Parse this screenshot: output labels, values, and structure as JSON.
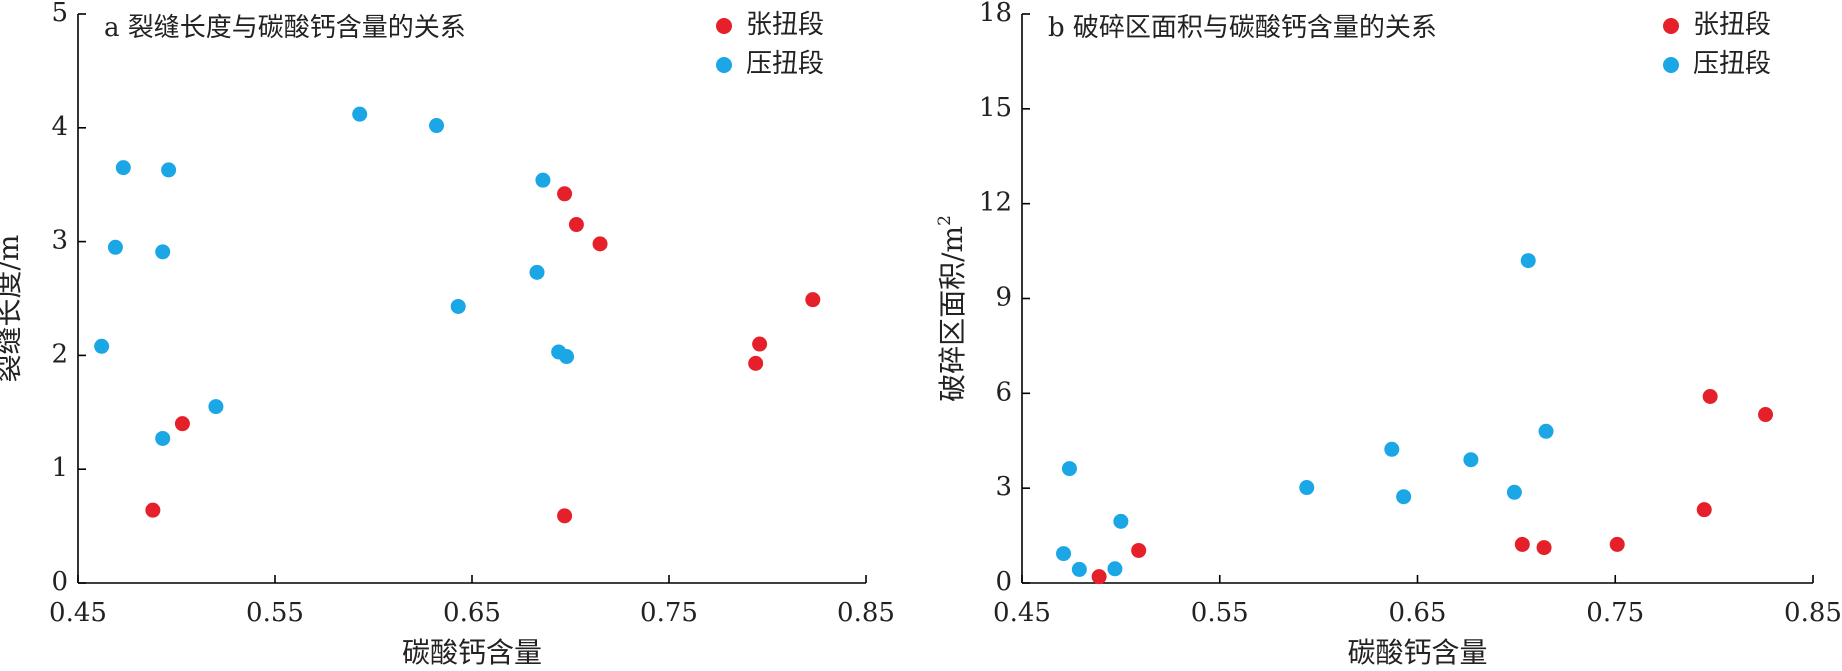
{
  "chart_data": [
    {
      "type": "scatter",
      "title": "a 裂缝长度与碳酸钙含量的关系",
      "xlabel": "碳酸钙含量",
      "ylabel": "裂缝长度/m",
      "xlim": [
        0.45,
        0.85
      ],
      "ylim": [
        0,
        5
      ],
      "x_ticks": [
        "0.45",
        "0.55",
        "0.65",
        "0.75",
        "0.85"
      ],
      "y_ticks": [
        "0",
        "1",
        "2",
        "3",
        "4",
        "5"
      ],
      "grid": false,
      "legend_position": "top-right",
      "series": [
        {
          "name": "张扭段",
          "color": "#e5202a",
          "points": [
            [
              0.697,
              3.42
            ],
            [
              0.703,
              3.15
            ],
            [
              0.715,
              2.98
            ],
            [
              0.823,
              2.49
            ],
            [
              0.796,
              2.1
            ],
            [
              0.794,
              1.93
            ],
            [
              0.503,
              1.4
            ],
            [
              0.488,
              0.64
            ],
            [
              0.697,
              0.59
            ]
          ]
        },
        {
          "name": "压扭段",
          "color": "#1ba6e6",
          "points": [
            [
              0.593,
              4.12
            ],
            [
              0.632,
              4.02
            ],
            [
              0.473,
              3.65
            ],
            [
              0.496,
              3.63
            ],
            [
              0.686,
              3.54
            ],
            [
              0.469,
              2.95
            ],
            [
              0.493,
              2.91
            ],
            [
              0.683,
              2.73
            ],
            [
              0.643,
              2.43
            ],
            [
              0.462,
              2.08
            ],
            [
              0.694,
              2.03
            ],
            [
              0.698,
              1.99
            ],
            [
              0.52,
              1.55
            ],
            [
              0.493,
              1.27
            ]
          ]
        }
      ]
    },
    {
      "type": "scatter",
      "title": "b 破碎区面积与碳酸钙含量的关系",
      "xlabel": "碳酸钙含量",
      "ylabel": "破碎区面积/m",
      "ylabel_superscript": "2",
      "xlim": [
        0.45,
        0.85
      ],
      "ylim": [
        0,
        18
      ],
      "x_ticks": [
        "0.45",
        "0.55",
        "0.65",
        "0.75",
        "0.85"
      ],
      "y_ticks": [
        "0",
        "3",
        "6",
        "9",
        "12",
        "15",
        "18"
      ],
      "grid": false,
      "legend_position": "top-right",
      "series": [
        {
          "name": "张扭段",
          "color": "#e5202a",
          "points": [
            [
              0.798,
              5.9
            ],
            [
              0.826,
              5.33
            ],
            [
              0.795,
              2.32
            ],
            [
              0.509,
              1.03
            ],
            [
              0.703,
              1.22
            ],
            [
              0.714,
              1.12
            ],
            [
              0.751,
              1.22
            ],
            [
              0.489,
              0.2
            ]
          ]
        },
        {
          "name": "压扭段",
          "color": "#1ba6e6",
          "points": [
            [
              0.706,
              10.2
            ],
            [
              0.715,
              4.8
            ],
            [
              0.637,
              4.23
            ],
            [
              0.677,
              3.9
            ],
            [
              0.474,
              3.62
            ],
            [
              0.594,
              3.02
            ],
            [
              0.699,
              2.87
            ],
            [
              0.643,
              2.73
            ],
            [
              0.5,
              1.95
            ],
            [
              0.471,
              0.93
            ],
            [
              0.479,
              0.43
            ],
            [
              0.497,
              0.45
            ]
          ]
        }
      ]
    }
  ]
}
